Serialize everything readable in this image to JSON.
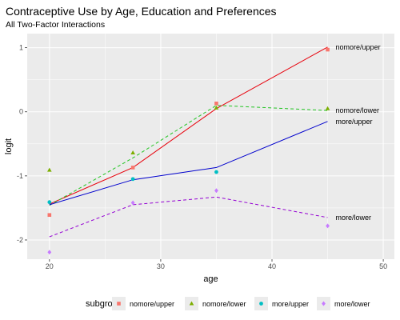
{
  "chart_data": {
    "type": "line",
    "title": "Contraceptive Use by Age, Education and Preferences",
    "subtitle": "All Two-Factor Interactions",
    "xlabel": "age",
    "ylabel": "logit",
    "xlim": [
      18,
      51
    ],
    "ylim": [
      -2.3,
      1.22
    ],
    "xticks": [
      20,
      30,
      40,
      50
    ],
    "yticks": [
      -2,
      -1,
      0,
      1
    ],
    "background": "#ebebeb",
    "grid": true,
    "legend_position": "bottom",
    "legend_title": "subgroup",
    "series": [
      {
        "name": "nomore/upper",
        "color": "#f8766d",
        "line_color": "#e8000b",
        "line_style": "solid",
        "marker": "square",
        "end_label": "nomore/upper",
        "points": [
          [
            20,
            -1.61
          ],
          [
            27.5,
            -0.87
          ],
          [
            35,
            0.13
          ],
          [
            45,
            0.97
          ]
        ],
        "fitted": [
          [
            20,
            -1.44
          ],
          [
            27.5,
            -0.87
          ],
          [
            35,
            0.05
          ],
          [
            45,
            1.01
          ]
        ]
      },
      {
        "name": "nomore/lower",
        "color": "#7cae00",
        "line_color": "#22c422",
        "line_style": "dashed",
        "marker": "triangle",
        "end_label": "nomore/lower",
        "points": [
          [
            20,
            -0.91
          ],
          [
            27.5,
            -0.64
          ],
          [
            35,
            0.06
          ],
          [
            45,
            0.05
          ]
        ],
        "fitted": [
          [
            20,
            -1.46
          ],
          [
            27.5,
            -0.72
          ],
          [
            35,
            0.1
          ],
          [
            45,
            0.02
          ]
        ]
      },
      {
        "name": "more/upper",
        "color": "#00bfc4",
        "line_color": "#0000cd",
        "line_style": "solid",
        "marker": "circle",
        "end_label": "more/upper",
        "points": [
          [
            20,
            -1.41
          ],
          [
            27.5,
            -1.05
          ],
          [
            35,
            -0.94
          ]
        ],
        "fitted": [
          [
            20,
            -1.45
          ],
          [
            27.5,
            -1.06
          ],
          [
            35,
            -0.87
          ],
          [
            45,
            -0.15
          ]
        ]
      },
      {
        "name": "more/lower",
        "color": "#c77cff",
        "line_color": "#9400d3",
        "line_style": "dashed",
        "marker": "diamond",
        "end_label": "more/lower",
        "points": [
          [
            20,
            -2.19
          ],
          [
            27.5,
            -1.42
          ],
          [
            35,
            -1.23
          ],
          [
            45,
            -1.78
          ]
        ],
        "fitted": [
          [
            20,
            -1.95
          ],
          [
            27.5,
            -1.45
          ],
          [
            35,
            -1.33
          ],
          [
            45,
            -1.65
          ]
        ]
      }
    ]
  }
}
